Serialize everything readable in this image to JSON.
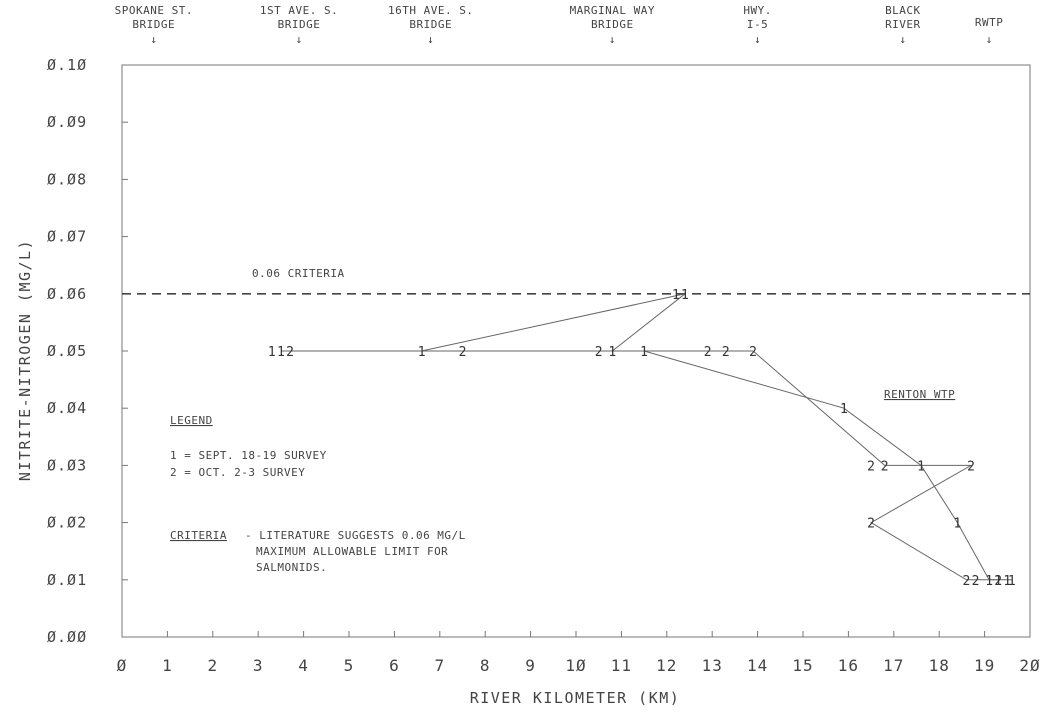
{
  "chart_data": {
    "type": "line",
    "title": "",
    "xlabel": "RIVER KILOMETER (KM)",
    "ylabel": "NITRITE-NITROGEN (MG/L)",
    "xlim": [
      0,
      20
    ],
    "ylim": [
      0.0,
      0.1
    ],
    "x_ticks": [
      "Ø",
      "1",
      "2",
      "3",
      "4",
      "5",
      "6",
      "7",
      "8",
      "9",
      "1Ø",
      "11",
      "12",
      "13",
      "14",
      "15",
      "16",
      "17",
      "18",
      "19",
      "2Ø"
    ],
    "y_ticks": [
      "Ø.ØØ",
      "Ø.Ø1",
      "Ø.Ø2",
      "Ø.Ø3",
      "Ø.Ø4",
      "Ø.Ø5",
      "Ø.Ø6",
      "Ø.Ø7",
      "Ø.Ø8",
      "Ø.Ø9",
      "Ø.1Ø"
    ],
    "grid": false,
    "reference_line": {
      "y": 0.06,
      "label": "0.06 CRITERIA",
      "style": "dashed"
    },
    "landmarks": [
      {
        "lines": [
          "SPOKANE ST.",
          "BRIDGE"
        ],
        "x": 0.7
      },
      {
        "lines": [
          "1ST AVE. S.",
          "BRIDGE"
        ],
        "x": 3.9
      },
      {
        "lines": [
          "16TH AVE. S.",
          "BRIDGE"
        ],
        "x": 6.8
      },
      {
        "lines": [
          "MARGINAL WAY",
          "BRIDGE"
        ],
        "x": 10.8
      },
      {
        "lines": [
          "HWY.",
          "I-5"
        ],
        "x": 14.0
      },
      {
        "lines": [
          "BLACK",
          "RIVER"
        ],
        "x": 17.2
      },
      {
        "lines": [
          "RWTP"
        ],
        "x": 19.1
      }
    ],
    "series": [
      {
        "label": "1",
        "points": [
          {
            "x": 3.5,
            "y": 0.05
          },
          {
            "x": 6.6,
            "y": 0.05
          },
          {
            "x": 12.4,
            "y": 0.06
          },
          {
            "x": 10.8,
            "y": 0.05
          },
          {
            "x": 11.5,
            "y": 0.05
          },
          {
            "x": 15.9,
            "y": 0.04
          },
          {
            "x": 17.6,
            "y": 0.03
          },
          {
            "x": 18.4,
            "y": 0.02
          },
          {
            "x": 19.1,
            "y": 0.01
          },
          {
            "x": 19.6,
            "y": 0.01
          }
        ]
      },
      {
        "label": "2",
        "points": [
          {
            "x": 3.7,
            "y": 0.05
          },
          {
            "x": 7.5,
            "y": 0.05
          },
          {
            "x": 10.5,
            "y": 0.05
          },
          {
            "x": 12.9,
            "y": 0.05
          },
          {
            "x": 13.9,
            "y": 0.05
          },
          {
            "x": 16.8,
            "y": 0.03
          },
          {
            "x": 18.7,
            "y": 0.03
          },
          {
            "x": 16.5,
            "y": 0.02
          },
          {
            "x": 18.6,
            "y": 0.01
          },
          {
            "x": 19.3,
            "y": 0.01
          }
        ]
      }
    ],
    "extra_marks": [
      {
        "label": "1",
        "x": 12.2,
        "y": 0.06
      },
      {
        "label": "2",
        "x": 13.3,
        "y": 0.05
      },
      {
        "label": "2",
        "x": 16.5,
        "y": 0.03
      },
      {
        "label": "2",
        "x": 18.8,
        "y": 0.01
      },
      {
        "label": "1",
        "x": 19.3,
        "y": 0.01
      },
      {
        "label": "1",
        "x": 19.5,
        "y": 0.01
      },
      {
        "label": "1",
        "x": 3.3,
        "y": 0.05
      }
    ],
    "annotations": {
      "renton": "RENTON WTP",
      "legend_title": "LEGEND",
      "legend_items": [
        "1 = SEPT. 18-19 SURVEY",
        "2 = OCT. 2-3 SURVEY"
      ],
      "criteria_title": "CRITERIA",
      "criteria_lines": [
        "- LITERATURE SUGGESTS 0.06 MG/L",
        "MAXIMUM ALLOWABLE LIMIT FOR",
        "SALMONIDS."
      ]
    }
  }
}
